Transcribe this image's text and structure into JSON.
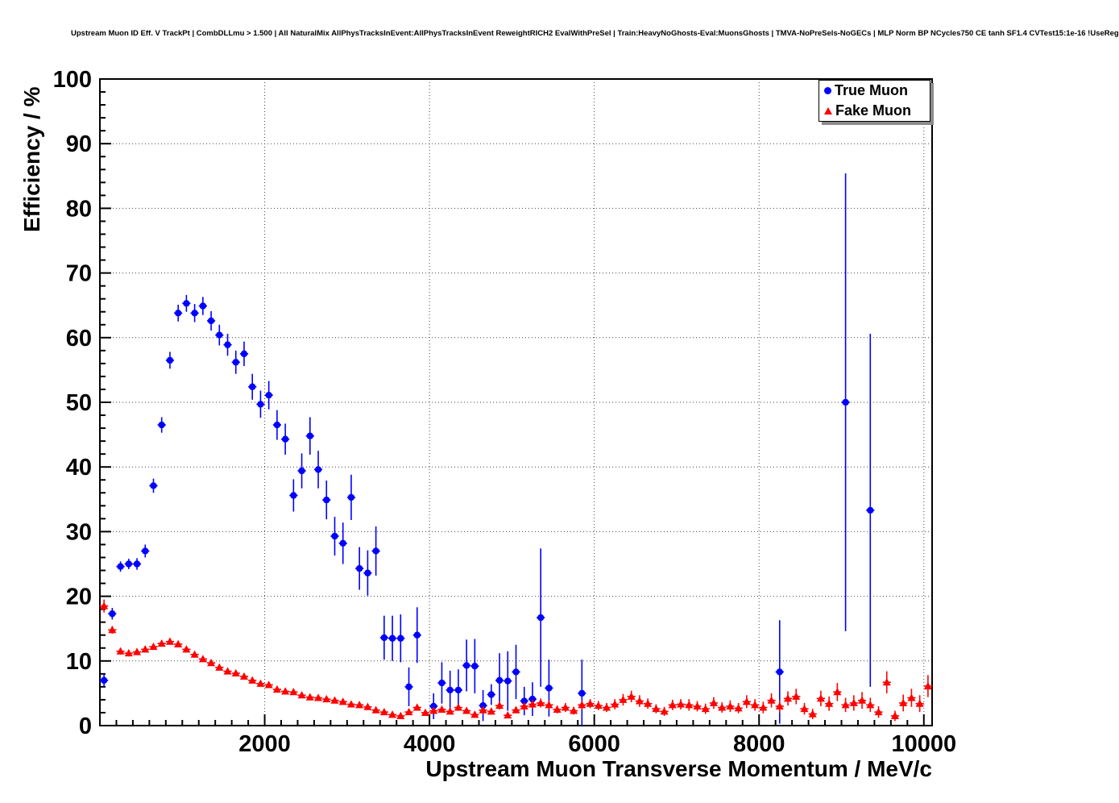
{
  "chart_data": {
    "type": "scatter",
    "title": "Upstream Muon ID Eff. V TrackPt | CombDLLmu > 1.500 | All NaturalMix AllPhysTracksInEvent:AllPhysTracksInEvent ReweightRICH2 EvalWithPreSel | Train:HeavyNoGhosts-Eval:MuonsGhosts | TMVA-NoPreSels-NoGECs | MLP Norm BP NCycles750 CE tanh SF1.4 CVTest15:1e-16 !UseReg",
    "xlabel": "Upstream Muon Transverse Momentum / MeV/c",
    "ylabel": "Efficiency / %",
    "xlim": [
      0,
      10100
    ],
    "ylim": [
      0,
      100
    ],
    "x_ticks": [
      2000,
      4000,
      6000,
      8000,
      10000
    ],
    "y_ticks": [
      0,
      10,
      20,
      30,
      40,
      50,
      60,
      70,
      80,
      90,
      100
    ],
    "x_minor_step": 200,
    "y_minor_step": 2,
    "grid": true,
    "legend_position": "top-right",
    "x_halfwidth": 50,
    "series": [
      {
        "name": "True Muon",
        "color": "#0000ff",
        "marker": "circle",
        "points": [
          [
            50,
            7.0,
            1.0
          ],
          [
            150,
            17.3,
            0.9
          ],
          [
            250,
            24.6,
            0.8
          ],
          [
            350,
            25.0,
            0.8
          ],
          [
            450,
            25.0,
            0.9
          ],
          [
            550,
            27.0,
            1.0
          ],
          [
            650,
            37.1,
            1.1
          ],
          [
            750,
            46.5,
            1.2
          ],
          [
            850,
            56.5,
            1.3
          ],
          [
            950,
            63.8,
            1.3
          ],
          [
            1050,
            65.3,
            1.3
          ],
          [
            1150,
            63.8,
            1.4
          ],
          [
            1250,
            64.9,
            1.4
          ],
          [
            1350,
            62.6,
            1.5
          ],
          [
            1450,
            60.4,
            1.6
          ],
          [
            1550,
            58.9,
            1.7
          ],
          [
            1650,
            56.2,
            1.8
          ],
          [
            1750,
            57.5,
            1.9
          ],
          [
            1850,
            52.4,
            2.0
          ],
          [
            1950,
            49.7,
            2.1
          ],
          [
            2050,
            51.1,
            2.2
          ],
          [
            2150,
            46.5,
            2.3
          ],
          [
            2250,
            44.3,
            2.4
          ],
          [
            2350,
            35.6,
            2.5
          ],
          [
            2450,
            39.4,
            2.7
          ],
          [
            2550,
            44.8,
            2.9
          ],
          [
            2650,
            39.6,
            2.9
          ],
          [
            2750,
            34.9,
            3.0
          ],
          [
            2850,
            29.3,
            3.0
          ],
          [
            2950,
            28.2,
            3.2
          ],
          [
            3050,
            35.3,
            3.5
          ],
          [
            3150,
            24.3,
            3.3
          ],
          [
            3250,
            23.6,
            3.5
          ],
          [
            3350,
            27.0,
            3.8
          ],
          [
            3450,
            13.6,
            3.4
          ],
          [
            3550,
            13.5,
            3.5
          ],
          [
            3650,
            13.5,
            3.7
          ],
          [
            3750,
            6.0,
            3.0
          ],
          [
            3850,
            14.0,
            4.3
          ],
          [
            4050,
            3.0,
            2.0
          ],
          [
            4150,
            6.6,
            3.2
          ],
          [
            4250,
            5.5,
            3.0
          ],
          [
            4350,
            5.5,
            3.2
          ],
          [
            4450,
            9.3,
            4.0
          ],
          [
            4550,
            9.2,
            4.2
          ],
          [
            4650,
            3.1,
            2.4
          ],
          [
            4750,
            4.8,
            1.6
          ],
          [
            4850,
            7.0,
            4.2
          ],
          [
            4950,
            6.9,
            4.6
          ],
          [
            5050,
            8.3,
            4.2
          ],
          [
            5150,
            3.8,
            2.2
          ],
          [
            5250,
            4.1,
            2.6
          ],
          [
            5350,
            16.7,
            10.7
          ],
          [
            5450,
            5.8,
            4.4
          ],
          [
            5850,
            5.0,
            5.2
          ],
          [
            8250,
            8.3,
            8.0
          ],
          [
            9050,
            50.0,
            35.4
          ],
          [
            9350,
            33.3,
            27.3
          ]
        ]
      },
      {
        "name": "Fake Muon",
        "color": "#ff0000",
        "marker": "triangle",
        "points": [
          [
            50,
            18.5,
            1.0
          ],
          [
            150,
            14.8,
            0.6
          ],
          [
            250,
            11.5,
            0.5
          ],
          [
            350,
            11.2,
            0.5
          ],
          [
            450,
            11.4,
            0.5
          ],
          [
            550,
            11.8,
            0.5
          ],
          [
            650,
            12.2,
            0.5
          ],
          [
            750,
            12.7,
            0.5
          ],
          [
            850,
            13.0,
            0.5
          ],
          [
            950,
            12.6,
            0.5
          ],
          [
            1050,
            11.8,
            0.4
          ],
          [
            1150,
            11.0,
            0.4
          ],
          [
            1250,
            10.3,
            0.4
          ],
          [
            1350,
            9.7,
            0.4
          ],
          [
            1450,
            9.0,
            0.4
          ],
          [
            1550,
            8.4,
            0.4
          ],
          [
            1650,
            8.1,
            0.4
          ],
          [
            1750,
            7.6,
            0.4
          ],
          [
            1850,
            7.0,
            0.4
          ],
          [
            1950,
            6.5,
            0.4
          ],
          [
            2050,
            6.3,
            0.4
          ],
          [
            2150,
            5.6,
            0.4
          ],
          [
            2250,
            5.3,
            0.4
          ],
          [
            2350,
            5.2,
            0.4
          ],
          [
            2450,
            4.7,
            0.4
          ],
          [
            2550,
            4.4,
            0.4
          ],
          [
            2650,
            4.3,
            0.4
          ],
          [
            2750,
            4.1,
            0.4
          ],
          [
            2850,
            3.9,
            0.4
          ],
          [
            2950,
            3.7,
            0.4
          ],
          [
            3050,
            3.3,
            0.4
          ],
          [
            3150,
            3.2,
            0.4
          ],
          [
            3250,
            2.9,
            0.4
          ],
          [
            3350,
            2.4,
            0.3
          ],
          [
            3450,
            2.1,
            0.3
          ],
          [
            3550,
            1.7,
            0.3
          ],
          [
            3650,
            1.5,
            0.3
          ],
          [
            3750,
            2.1,
            0.4
          ],
          [
            3850,
            2.8,
            0.4
          ],
          [
            3950,
            2.0,
            0.4
          ],
          [
            4050,
            2.3,
            0.4
          ],
          [
            4150,
            2.5,
            0.4
          ],
          [
            4250,
            2.2,
            0.4
          ],
          [
            4350,
            2.8,
            0.5
          ],
          [
            4450,
            2.3,
            0.5
          ],
          [
            4550,
            1.7,
            0.4
          ],
          [
            4650,
            2.4,
            0.5
          ],
          [
            4750,
            2.2,
            0.5
          ],
          [
            4850,
            3.1,
            0.6
          ],
          [
            4950,
            1.6,
            0.4
          ],
          [
            5050,
            2.4,
            0.5
          ],
          [
            5150,
            3.0,
            0.6
          ],
          [
            5250,
            3.3,
            0.7
          ],
          [
            5350,
            3.5,
            0.7
          ],
          [
            5450,
            3.2,
            0.7
          ],
          [
            5550,
            2.5,
            0.6
          ],
          [
            5650,
            2.8,
            0.7
          ],
          [
            5750,
            2.3,
            0.6
          ],
          [
            5850,
            3.2,
            0.7
          ],
          [
            5950,
            3.4,
            0.7
          ],
          [
            6050,
            3.1,
            0.7
          ],
          [
            6150,
            2.8,
            0.7
          ],
          [
            6250,
            3.3,
            0.8
          ],
          [
            6350,
            4.0,
            0.9
          ],
          [
            6450,
            4.5,
            0.9
          ],
          [
            6550,
            3.8,
            0.9
          ],
          [
            6650,
            3.4,
            0.8
          ],
          [
            6750,
            2.6,
            0.7
          ],
          [
            6850,
            2.2,
            0.7
          ],
          [
            6950,
            3.2,
            0.8
          ],
          [
            7050,
            3.3,
            0.8
          ],
          [
            7150,
            3.2,
            0.9
          ],
          [
            7250,
            3.0,
            0.8
          ],
          [
            7350,
            2.6,
            0.8
          ],
          [
            7450,
            3.5,
            0.9
          ],
          [
            7550,
            2.8,
            0.8
          ],
          [
            7650,
            3.0,
            0.9
          ],
          [
            7750,
            2.7,
            0.8
          ],
          [
            7850,
            3.7,
            1.0
          ],
          [
            7950,
            3.2,
            0.9
          ],
          [
            8050,
            2.8,
            0.9
          ],
          [
            8150,
            3.9,
            1.1
          ],
          [
            8250,
            3.0,
            1.0
          ],
          [
            8350,
            4.2,
            1.1
          ],
          [
            8450,
            4.5,
            1.2
          ],
          [
            8550,
            2.6,
            0.9
          ],
          [
            8650,
            1.8,
            0.8
          ],
          [
            8750,
            4.2,
            1.2
          ],
          [
            8850,
            3.4,
            1.1
          ],
          [
            8950,
            5.2,
            1.4
          ],
          [
            9050,
            3.2,
            1.1
          ],
          [
            9150,
            3.5,
            1.2
          ],
          [
            9250,
            3.9,
            1.3
          ],
          [
            9350,
            3.2,
            1.1
          ],
          [
            9450,
            2.1,
            0.9
          ],
          [
            9550,
            6.7,
            1.7
          ],
          [
            9650,
            1.5,
            0.8
          ],
          [
            9750,
            3.5,
            1.3
          ],
          [
            9850,
            4.3,
            1.4
          ],
          [
            9950,
            3.4,
            1.3
          ],
          [
            10050,
            6.1,
            1.7
          ]
        ]
      }
    ]
  }
}
